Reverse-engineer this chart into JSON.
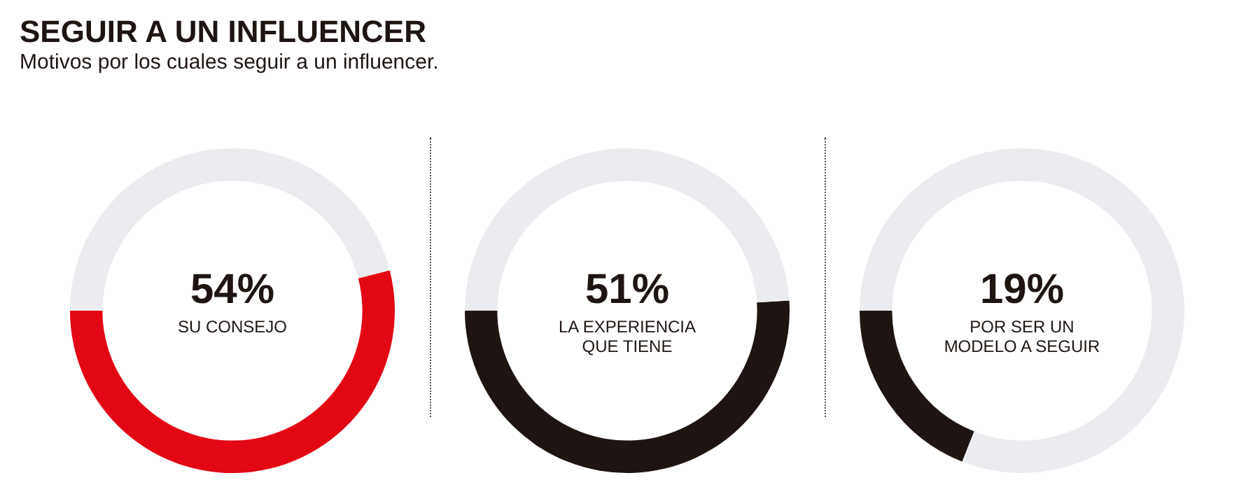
{
  "chart_data": [
    {
      "type": "other",
      "title": "SEGUIR A UN INFLUENCER",
      "subtitle": "Motivos por los cuales seguir a un influencer."
    },
    {
      "type": "donut",
      "title": "SU CONSEJO",
      "annotations": [
        "54%"
      ],
      "categories": [
        null,
        null
      ],
      "values": [
        54,
        46
      ],
      "colors": [
        "#e30613",
        "#ebecef"
      ],
      "legend": false
    },
    {
      "type": "donut",
      "title": "LA EXPERIENCIA QUE TIENE",
      "annotations": [
        "51%"
      ],
      "categories": [
        null,
        null
      ],
      "values": [
        51,
        49
      ],
      "colors": [
        "#1e1512",
        "#ebecef"
      ],
      "legend": false
    },
    {
      "type": "donut",
      "title": "POR SER UN MODELO A SEGUIR",
      "annotations": [
        "19%"
      ],
      "categories": [
        null,
        null
      ],
      "values": [
        19,
        81
      ],
      "colors": [
        "#1e1512",
        "#ebecef"
      ],
      "legend": false
    }
  ]
}
